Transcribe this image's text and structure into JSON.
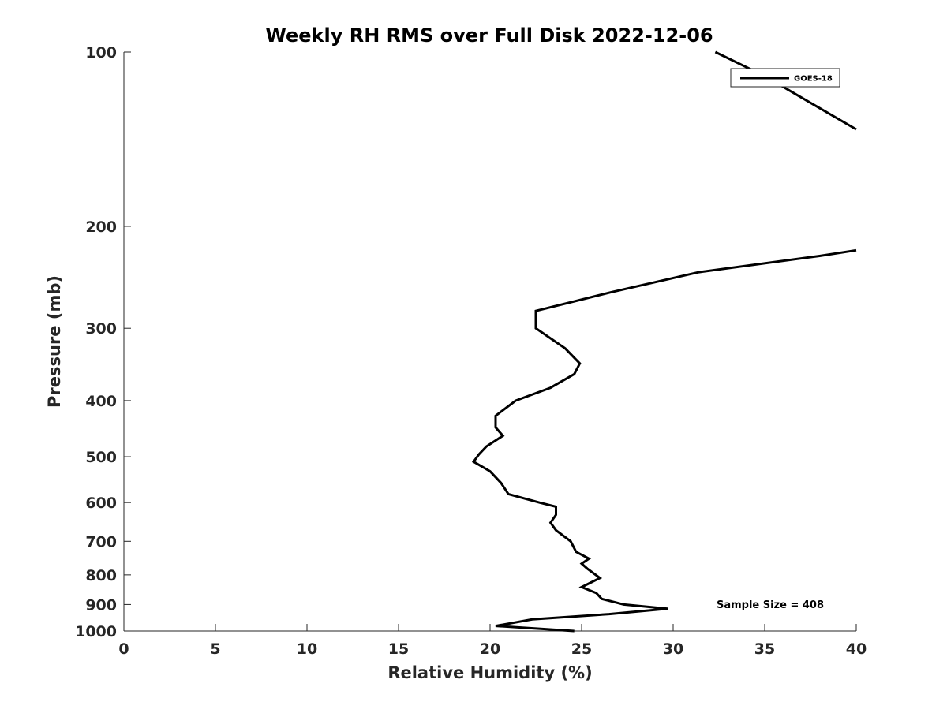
{
  "chart_data": {
    "type": "line",
    "title": "Weekly RH RMS over Full Disk 2022-12-06",
    "xlabel": "Relative Humidity (%)",
    "ylabel": "Pressure (mb)",
    "xlim": [
      0,
      40
    ],
    "ylim": [
      100,
      1000
    ],
    "yscale": "log",
    "y_reversed": true,
    "grid": false,
    "legend_position": "top-right",
    "x_ticks": [
      0,
      5,
      10,
      15,
      20,
      25,
      30,
      35,
      40
    ],
    "y_ticks": [
      100,
      200,
      300,
      400,
      500,
      600,
      700,
      800,
      900,
      1000
    ],
    "annotation": "Sample Size = 408",
    "series": [
      {
        "name": "GOES-18",
        "color": "#000000",
        "points": [
          {
            "rh": 24.6,
            "p": 1000
          },
          {
            "rh": 20.3,
            "p": 980
          },
          {
            "rh": 22.3,
            "p": 955
          },
          {
            "rh": 26.5,
            "p": 935
          },
          {
            "rh": 29.7,
            "p": 915
          },
          {
            "rh": 27.3,
            "p": 900
          },
          {
            "rh": 26.1,
            "p": 880
          },
          {
            "rh": 25.8,
            "p": 860
          },
          {
            "rh": 25.0,
            "p": 840
          },
          {
            "rh": 26.0,
            "p": 810
          },
          {
            "rh": 25.3,
            "p": 780
          },
          {
            "rh": 25.0,
            "p": 765
          },
          {
            "rh": 25.4,
            "p": 750
          },
          {
            "rh": 24.7,
            "p": 730
          },
          {
            "rh": 24.4,
            "p": 700
          },
          {
            "rh": 23.6,
            "p": 670
          },
          {
            "rh": 23.3,
            "p": 650
          },
          {
            "rh": 23.6,
            "p": 630
          },
          {
            "rh": 23.6,
            "p": 610
          },
          {
            "rh": 22.7,
            "p": 600
          },
          {
            "rh": 21.0,
            "p": 580
          },
          {
            "rh": 20.6,
            "p": 555
          },
          {
            "rh": 20.0,
            "p": 530
          },
          {
            "rh": 19.1,
            "p": 510
          },
          {
            "rh": 19.4,
            "p": 495
          },
          {
            "rh": 19.8,
            "p": 480
          },
          {
            "rh": 20.7,
            "p": 460
          },
          {
            "rh": 20.3,
            "p": 445
          },
          {
            "rh": 20.3,
            "p": 425
          },
          {
            "rh": 21.4,
            "p": 400
          },
          {
            "rh": 23.3,
            "p": 380
          },
          {
            "rh": 24.6,
            "p": 360
          },
          {
            "rh": 24.9,
            "p": 345
          },
          {
            "rh": 24.1,
            "p": 325
          },
          {
            "rh": 22.5,
            "p": 300
          },
          {
            "rh": 22.5,
            "p": 280
          },
          {
            "rh": 26.6,
            "p": 260
          },
          {
            "rh": 31.4,
            "p": 240
          },
          {
            "rh": 38.0,
            "p": 225
          },
          {
            "rh": 40.0,
            "p": 220
          }
        ]
      },
      {
        "name": "",
        "color": "#000000",
        "points": [
          {
            "rh": 32.3,
            "p": 100
          },
          {
            "rh": 35.0,
            "p": 110
          },
          {
            "rh": 38.0,
            "p": 125
          },
          {
            "rh": 40.0,
            "p": 136
          }
        ]
      }
    ]
  }
}
